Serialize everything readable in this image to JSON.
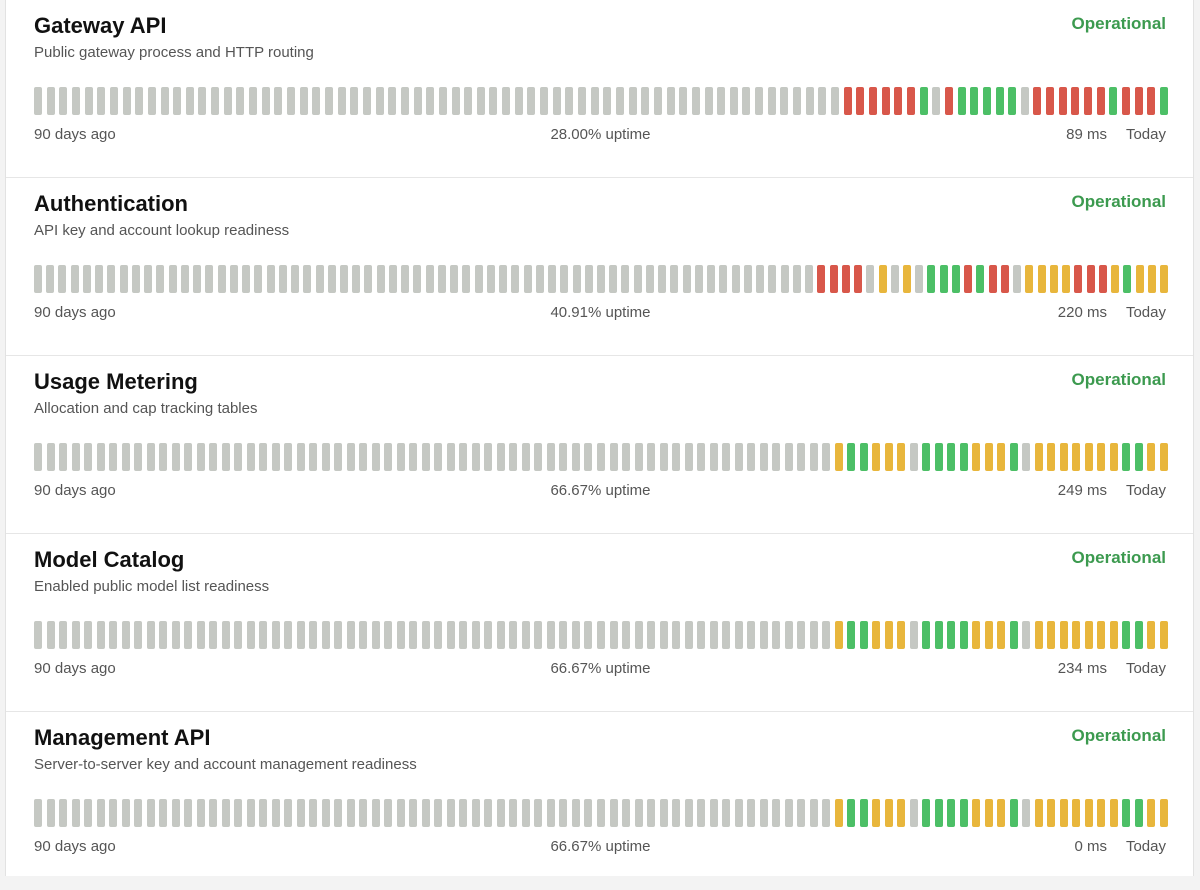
{
  "legend": {
    "start_label": "90 days ago",
    "end_label": "Today",
    "uptime_suffix": "uptime"
  },
  "colors": {
    "nodata": "#c5c8c3",
    "ok": "#4cbf66",
    "degraded": "#e8b63c",
    "down": "#d8574a",
    "status_text": "#3c9a4f"
  },
  "components": [
    {
      "name": "Gateway API",
      "description": "Public gateway process and HTTP routing",
      "status": "Operational",
      "uptime": "28.00% uptime",
      "latency": "89 ms",
      "bars": "ggggggggggggggggggggggggggggggggggggggggggggggggggggggggggggggggrrrrrrokrooooogrrrrrrorrro"
    },
    {
      "name": "Authentication",
      "description": "API key and account lookup readiness",
      "status": "Operational",
      "uptime": "40.91% uptime",
      "latency": "220 ms",
      "bars": "ggggggggggggggggggggggggggggggggggggggggggggggggggggggggggggggggrrrrydgdgooororrgddddrrrdoddd"
    },
    {
      "name": "Usage Metering",
      "description": "Allocation and cap tracking tables",
      "status": "Operational",
      "uptime": "66.67% uptime",
      "latency": "249 ms",
      "bars": "ggggggggggggggggggggggggggggggggggggggggggggggggggggggggggggggggdoodddgoooodddogdddddddoodd"
    },
    {
      "name": "Model Catalog",
      "description": "Enabled public model list readiness",
      "status": "Operational",
      "uptime": "66.67% uptime",
      "latency": "234 ms",
      "bars": "ggggggggggggggggggggggggggggggggggggggggggggggggggggggggggggggggdoodddgoooodddogdddddddoodd"
    },
    {
      "name": "Management API",
      "description": "Server-to-server key and account management readiness",
      "status": "Operational",
      "uptime": "66.67% uptime",
      "latency": "0 ms",
      "bars": "ggggggggggggggggggggggggggggggggggggggggggggggggggggggggggggggggdoodddgoooodddogdddddddoodd"
    }
  ]
}
